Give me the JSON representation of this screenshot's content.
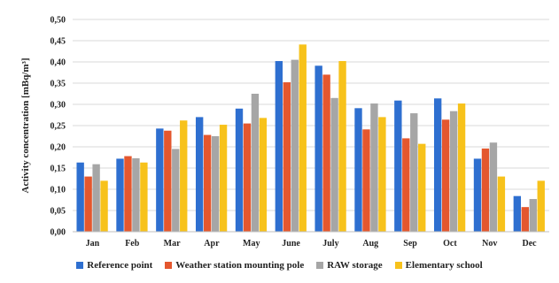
{
  "chart_data": {
    "type": "bar",
    "ylabel": "Activity concentration [mBq/m³]",
    "xlabel": "",
    "ylim": [
      0,
      0.5
    ],
    "ytick_step": 0.05,
    "yticks": [
      "0,00",
      "0,05",
      "0,10",
      "0,15",
      "0,20",
      "0,25",
      "0,30",
      "0,35",
      "0,40",
      "0,45",
      "0,50"
    ],
    "grid": true,
    "legend_position": "bottom",
    "categories": [
      "Jan",
      "Feb",
      "Mar",
      "Apr",
      "May",
      "June",
      "July",
      "Aug",
      "Sep",
      "Oct",
      "Nov",
      "Dec"
    ],
    "series": [
      {
        "name": "Reference point",
        "color": "#2e6fd0",
        "values": [
          0.163,
          0.172,
          0.243,
          0.27,
          0.29,
          0.402,
          0.391,
          0.291,
          0.309,
          0.314,
          0.172,
          0.084
        ]
      },
      {
        "name": "Weather station mounting pole",
        "color": "#e4572e",
        "values": [
          0.13,
          0.178,
          0.238,
          0.228,
          0.255,
          0.352,
          0.37,
          0.241,
          0.22,
          0.264,
          0.196,
          0.058
        ]
      },
      {
        "name": "RAW storage",
        "color": "#a6a6a6",
        "values": [
          0.159,
          0.173,
          0.195,
          0.225,
          0.325,
          0.405,
          0.315,
          0.302,
          0.279,
          0.284,
          0.21,
          0.077
        ]
      },
      {
        "name": "Elementary school",
        "color": "#f7c21b",
        "values": [
          0.12,
          0.163,
          0.262,
          0.252,
          0.268,
          0.441,
          0.402,
          0.27,
          0.207,
          0.302,
          0.13,
          0.12
        ]
      }
    ]
  }
}
